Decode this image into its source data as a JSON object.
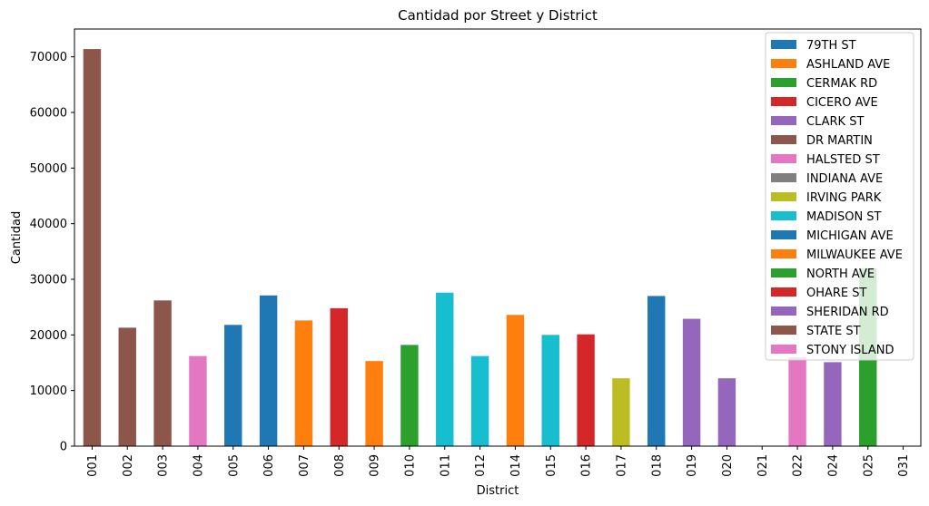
{
  "chart_data": {
    "type": "bar",
    "stacked": true,
    "title": "Cantidad por Street y District",
    "xlabel": "District",
    "ylabel": "Cantidad",
    "ylim": [
      0,
      75000
    ],
    "yticks": [
      0,
      10000,
      20000,
      30000,
      40000,
      50000,
      60000,
      70000
    ],
    "grid": false,
    "legend_position": "top-right",
    "categories": [
      "001",
      "002",
      "003",
      "004",
      "005",
      "006",
      "007",
      "008",
      "009",
      "010",
      "011",
      "012",
      "014",
      "015",
      "016",
      "017",
      "018",
      "019",
      "020",
      "021",
      "022",
      "024",
      "025",
      "031"
    ],
    "bars": [
      {
        "district": "001",
        "street": "STATE ST",
        "value": 71400
      },
      {
        "district": "002",
        "street": "STATE ST",
        "value": 21300
      },
      {
        "district": "003",
        "street": "STATE ST",
        "value": 26200
      },
      {
        "district": "004",
        "street": "STONY ISLAND",
        "value": 16200
      },
      {
        "district": "005",
        "street": "MICHIGAN AVE",
        "value": 21800
      },
      {
        "district": "006",
        "street": "MICHIGAN AVE",
        "value": 27100
      },
      {
        "district": "007",
        "street": "MILWAUKEE AVE",
        "value": 22600
      },
      {
        "district": "008",
        "street": "OHARE ST",
        "value": 24800
      },
      {
        "district": "009",
        "street": "MILWAUKEE AVE",
        "value": 15300
      },
      {
        "district": "010",
        "street": "NORTH AVE",
        "value": 18200
      },
      {
        "district": "011",
        "street": "MADISON ST",
        "value": 27600
      },
      {
        "district": "012",
        "street": "MADISON ST",
        "value": 16200
      },
      {
        "district": "014",
        "street": "MILWAUKEE AVE",
        "value": 23600
      },
      {
        "district": "015",
        "street": "MADISON ST",
        "value": 20000
      },
      {
        "district": "016",
        "street": "OHARE ST",
        "value": 20100
      },
      {
        "district": "017",
        "street": "IRVING PARK",
        "value": 12200
      },
      {
        "district": "018",
        "street": "MICHIGAN AVE",
        "value": 27000
      },
      {
        "district": "019",
        "street": "SHERIDAN RD",
        "value": 22900
      },
      {
        "district": "020",
        "street": "SHERIDAN RD",
        "value": 12200
      },
      {
        "district": "021",
        "street": "",
        "value": 0
      },
      {
        "district": "022",
        "street": "STONY ISLAND",
        "value": 16000
      },
      {
        "district": "024",
        "street": "SHERIDAN RD",
        "value": 15100
      },
      {
        "district": "025",
        "street": "NORTH AVE",
        "value": 32000
      },
      {
        "district": "031",
        "street": "",
        "value": 0
      }
    ],
    "legend": [
      {
        "name": "79TH ST",
        "color": "#1f77b4"
      },
      {
        "name": "ASHLAND AVE",
        "color": "#ff7f0e"
      },
      {
        "name": "CERMAK RD",
        "color": "#2ca02c"
      },
      {
        "name": "CICERO AVE",
        "color": "#d62728"
      },
      {
        "name": "CLARK ST",
        "color": "#9467bd"
      },
      {
        "name": "DR MARTIN",
        "color": "#8c564b"
      },
      {
        "name": "HALSTED ST",
        "color": "#e377c2"
      },
      {
        "name": "INDIANA AVE",
        "color": "#7f7f7f"
      },
      {
        "name": "IRVING PARK",
        "color": "#bcbd22"
      },
      {
        "name": "MADISON ST",
        "color": "#17becf"
      },
      {
        "name": "MICHIGAN AVE",
        "color": "#1f77b4"
      },
      {
        "name": "MILWAUKEE AVE",
        "color": "#ff7f0e"
      },
      {
        "name": "NORTH AVE",
        "color": "#2ca02c"
      },
      {
        "name": "OHARE ST",
        "color": "#d62728"
      },
      {
        "name": "SHERIDAN RD",
        "color": "#9467bd"
      },
      {
        "name": "STATE ST",
        "color": "#8c564b"
      },
      {
        "name": "STONY ISLAND",
        "color": "#e377c2"
      }
    ]
  }
}
